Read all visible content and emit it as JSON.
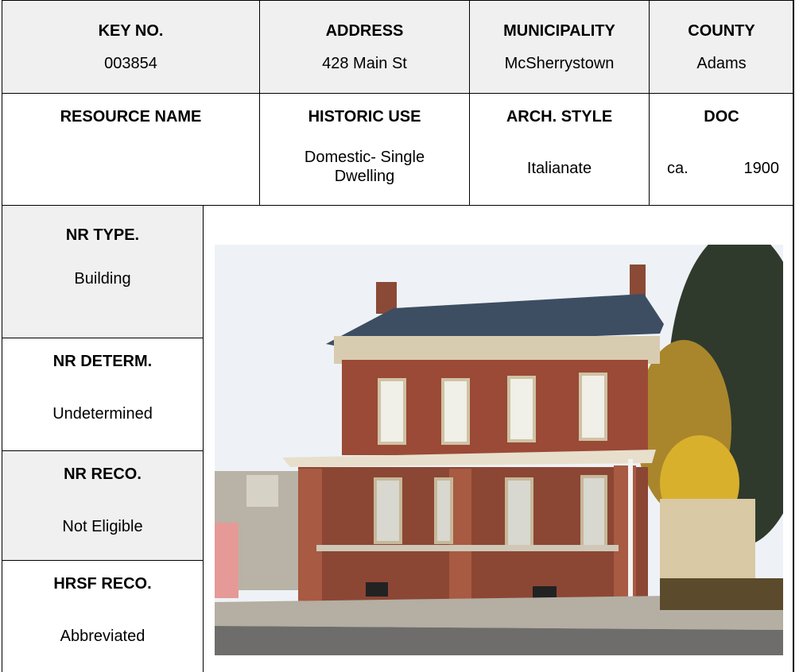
{
  "top_row": [
    {
      "label": "KEY NO.",
      "value": "003854"
    },
    {
      "label": "ADDRESS",
      "value": "428 Main St"
    },
    {
      "label": "MUNICIPALITY",
      "value": "McSherrystown"
    },
    {
      "label": "COUNTY",
      "value": "Adams"
    }
  ],
  "second_row": [
    {
      "label": "RESOURCE NAME"
    },
    {
      "label": "HISTORIC USE",
      "value": "Domestic- Single Dwelling"
    },
    {
      "label": "ARCH. STYLE",
      "value": "Italianate"
    },
    {
      "label": "DOC",
      "value": "ca. 1900"
    }
  ],
  "side_fields": [
    {
      "label": "NR TYPE.",
      "value": "Building"
    },
    {
      "label": "NR DETERM.",
      "value": "Undetermined"
    },
    {
      "label": "NR RECO.",
      "value": "Not Eligible"
    },
    {
      "label": "HRSF RECO.",
      "value": "Abbreviated"
    }
  ]
}
